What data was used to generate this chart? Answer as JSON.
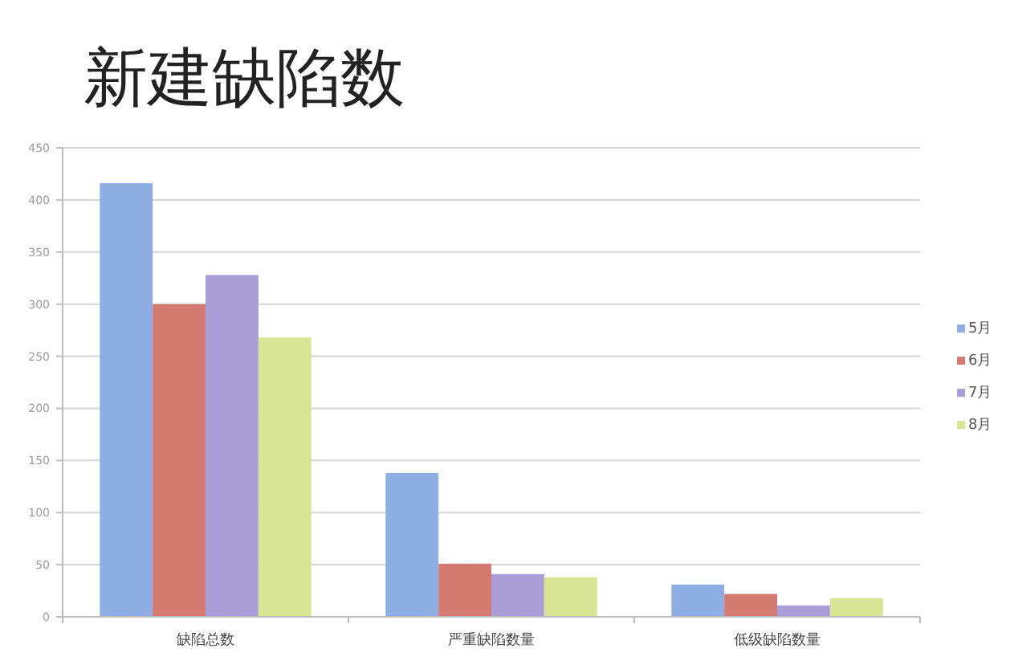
{
  "chart_data": {
    "type": "bar",
    "title": "新建缺陷数",
    "categories": [
      "缺陷总数",
      "严重缺陷数量",
      "低级缺陷数量"
    ],
    "series": [
      {
        "name": "5月",
        "color": "#8eaee3",
        "values": [
          416,
          138,
          31
        ]
      },
      {
        "name": "6月",
        "color": "#d47b71",
        "values": [
          300,
          51,
          22
        ]
      },
      {
        "name": "7月",
        "color": "#ab9dd8",
        "values": [
          328,
          41,
          11
        ]
      },
      {
        "name": "8月",
        "color": "#d9e596",
        "values": [
          268,
          38,
          18
        ]
      }
    ],
    "ylim": [
      0,
      450
    ],
    "yticks": [
      0,
      50,
      100,
      150,
      200,
      250,
      300,
      350,
      400,
      450
    ],
    "grid": "y",
    "legend": "right"
  }
}
